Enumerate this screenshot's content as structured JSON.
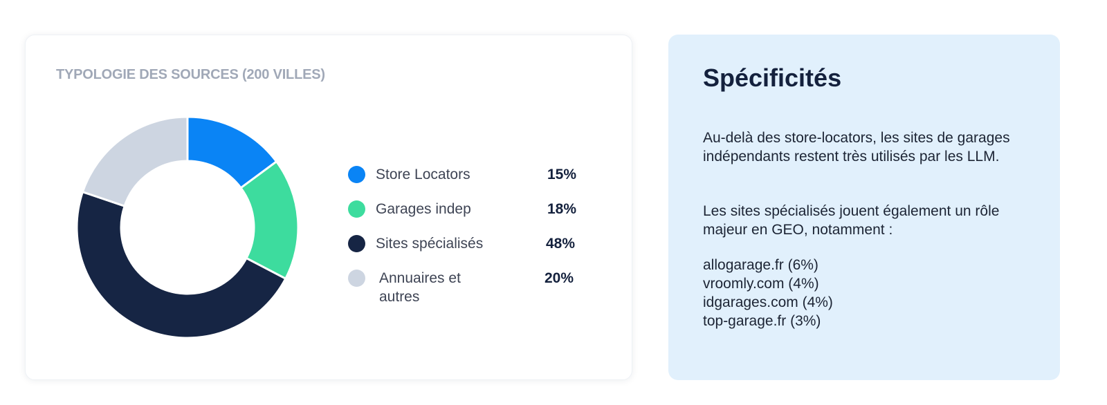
{
  "chart_data": {
    "type": "pie",
    "title": "TYPOLOGIE DES SOURCES (200 VILLES)",
    "donut": true,
    "legend_position": "right",
    "slices": [
      {
        "label": "Store Locators",
        "value": 15,
        "display": "15%",
        "color": "#0a84f5"
      },
      {
        "label": "Garages indep",
        "value": 18,
        "display": "18%",
        "color": "#3ddc9e"
      },
      {
        "label": "Sites spécialisés",
        "value": 48,
        "display": "48%",
        "color": "#162544"
      },
      {
        "label": "Annuaires et autres",
        "value": 20,
        "display": "20%",
        "color": "#cdd5e1"
      }
    ]
  },
  "specificites": {
    "title": "Spécificités",
    "paragraph1": "Au-delà des store-locators, les sites de garages indépendants restent très utilisés par les LLM.",
    "paragraph2": "Les sites spécialisés jouent également un rôle majeur en GEO, notamment :",
    "sites": [
      "allogarage.fr (6%)",
      "vroomly.com (4%)",
      "idgarages.com (4%)",
      "top-garage.fr (3%)"
    ]
  }
}
